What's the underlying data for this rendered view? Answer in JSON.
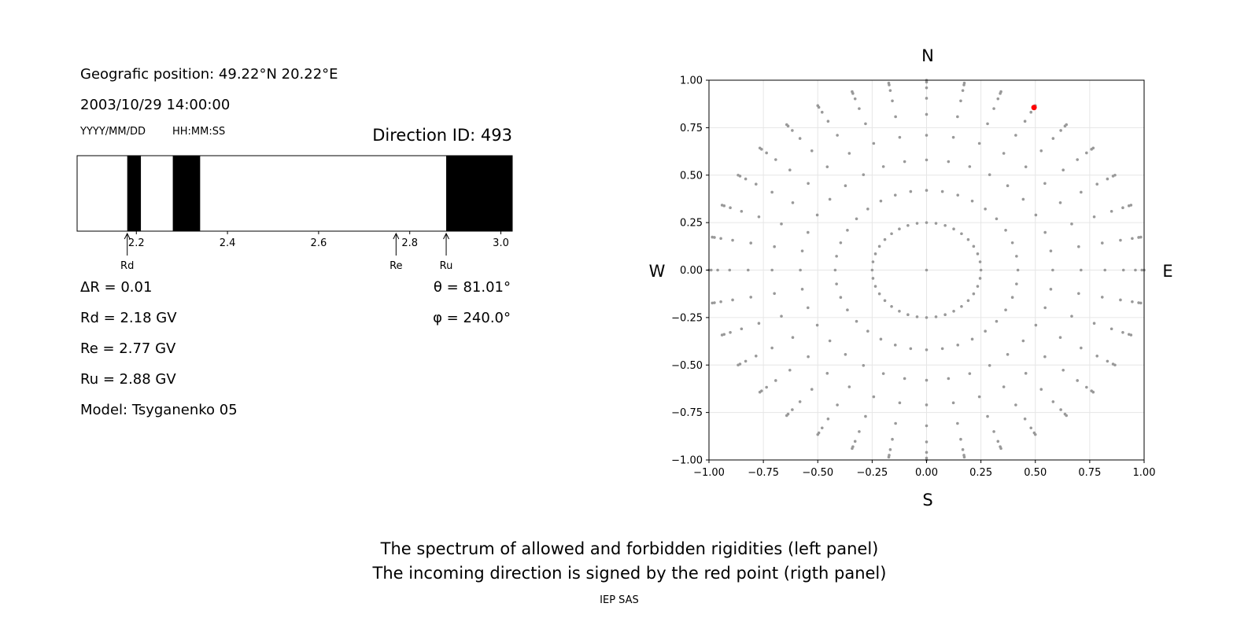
{
  "left_panel": {
    "geo_position": "Geografic position: 49.22°N 20.22°E",
    "datetime": "2003/10/29 14:00:00",
    "date_format_label": "YYYY/MM/DD",
    "time_format_label": "HH:MM:SS",
    "direction_id": "Direction ID: 493",
    "delta_r": "ΔR = 0.01",
    "rd_value": "Rd = 2.18 GV",
    "re_value": "Re = 2.77 GV",
    "ru_value": "Ru = 2.88 GV",
    "model": "Model: Tsyganenko 05",
    "theta": "θ = 81.01°",
    "phi": "φ = 240.0°"
  },
  "caption": {
    "line1": "The spectrum of allowed and forbidden rigidities (left panel)",
    "line2": "The incoming direction is signed by the red point (rigth panel)",
    "credit": "IEP SAS"
  },
  "chart_data": [
    {
      "type": "bar",
      "description_kind": "rigidity spectrum (black = forbidden, white = allowed)",
      "xlim": [
        2.07,
        3.025
      ],
      "ticks": [
        2.2,
        2.4,
        2.6,
        2.8,
        3.0
      ],
      "tick_labels": [
        "2.2",
        "2.4",
        "2.6",
        "2.8",
        "3.0"
      ],
      "forbidden_bands": [
        [
          2.18,
          2.21
        ],
        [
          2.28,
          2.34
        ],
        [
          2.88,
          3.025
        ]
      ],
      "markers": [
        {
          "label": "Rd",
          "value": 2.18
        },
        {
          "label": "Re",
          "value": 2.77
        },
        {
          "label": "Ru",
          "value": 2.88
        }
      ],
      "colors": {
        "forbidden": "#000000",
        "allowed": "#ffffff"
      }
    },
    {
      "type": "scatter",
      "xlim": [
        -1.0,
        1.0
      ],
      "ylim": [
        -1.0,
        1.0
      ],
      "ticks": [
        -1.0,
        -0.75,
        -0.5,
        -0.25,
        0.0,
        0.25,
        0.5,
        0.75,
        1.0
      ],
      "tick_labels": [
        "−1.00",
        "−0.75",
        "−0.50",
        "−0.25",
        "0.00",
        "0.25",
        "0.50",
        "0.75",
        "1.00"
      ],
      "grid": true,
      "compass": {
        "north": "N",
        "south": "S",
        "west": "W",
        "east": "E"
      },
      "grid_points": {
        "rings": [
          0.25,
          0.42,
          0.58,
          0.71,
          0.82,
          0.905,
          0.96,
          0.99,
          1.0
        ],
        "ray_count": 36,
        "ray_step_deg": 10
      },
      "highlight_point": {
        "x": 0.494,
        "y": 0.856
      },
      "colors": {
        "grid_point": "#999999",
        "highlight": "#ff0000",
        "gridline": "#e6e6e6"
      }
    }
  ]
}
